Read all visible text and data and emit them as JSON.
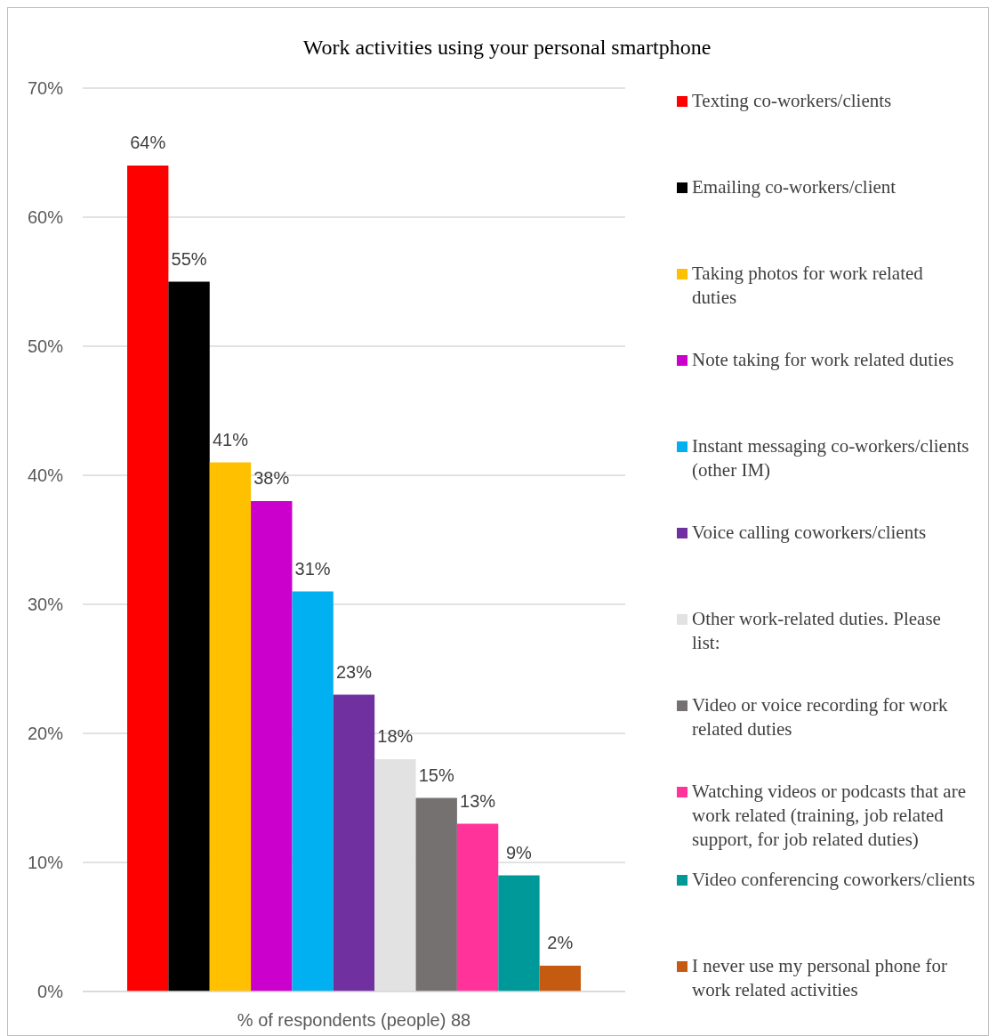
{
  "chart_data": {
    "type": "bar",
    "title": "Work activities using your personal smartphone",
    "categories": [
      "% of respondents (people) 88"
    ],
    "series": [
      {
        "name": "Texting co-workers/clients",
        "color": "#ff0000",
        "values": [
          64
        ],
        "value_labels": [
          "64%"
        ]
      },
      {
        "name": "Emailing co-workers/client",
        "color": "#000000",
        "values": [
          55
        ],
        "value_labels": [
          "55%"
        ]
      },
      {
        "name": "Taking photos for work related duties",
        "color": "#ffc000",
        "values": [
          41
        ],
        "value_labels": [
          "41%"
        ]
      },
      {
        "name": "Note taking for work related duties",
        "color": "#cc00cc",
        "values": [
          38
        ],
        "value_labels": [
          "38%"
        ]
      },
      {
        "name": "Instant messaging co-workers/clients (other IM)",
        "color": "#00b0f0",
        "values": [
          31
        ],
        "value_labels": [
          "31%"
        ]
      },
      {
        "name": "Voice calling coworkers/clients",
        "color": "#7030a0",
        "values": [
          23
        ],
        "value_labels": [
          "23%"
        ]
      },
      {
        "name": "Other work-related duties. Please list:",
        "color": "#e2e2e2",
        "values": [
          18
        ],
        "value_labels": [
          "18%"
        ]
      },
      {
        "name": "Video or voice recording for work related duties",
        "color": "#767171",
        "values": [
          15
        ],
        "value_labels": [
          "15%"
        ]
      },
      {
        "name": "Watching videos or podcasts that are work related (training, job related support, for job related duties)",
        "color": "#ff3399",
        "values": [
          13
        ],
        "value_labels": [
          "13%"
        ]
      },
      {
        "name": "Video conferencing coworkers/clients",
        "color": "#009999",
        "values": [
          9
        ],
        "value_labels": [
          "9%"
        ]
      },
      {
        "name": "I never use my personal phone for work related activities",
        "color": "#c55a11",
        "values": [
          2
        ],
        "value_labels": [
          "2%"
        ]
      }
    ],
    "ylim": [
      0,
      70
    ],
    "yticks": [
      {
        "value": 0,
        "label": "0%"
      },
      {
        "value": 10,
        "label": "10%"
      },
      {
        "value": 20,
        "label": "20%"
      },
      {
        "value": 30,
        "label": "30%"
      },
      {
        "value": 40,
        "label": "40%"
      },
      {
        "value": 50,
        "label": "50%"
      },
      {
        "value": 60,
        "label": "60%"
      },
      {
        "value": 70,
        "label": "70%"
      }
    ],
    "grid": "y",
    "legend": "right"
  }
}
